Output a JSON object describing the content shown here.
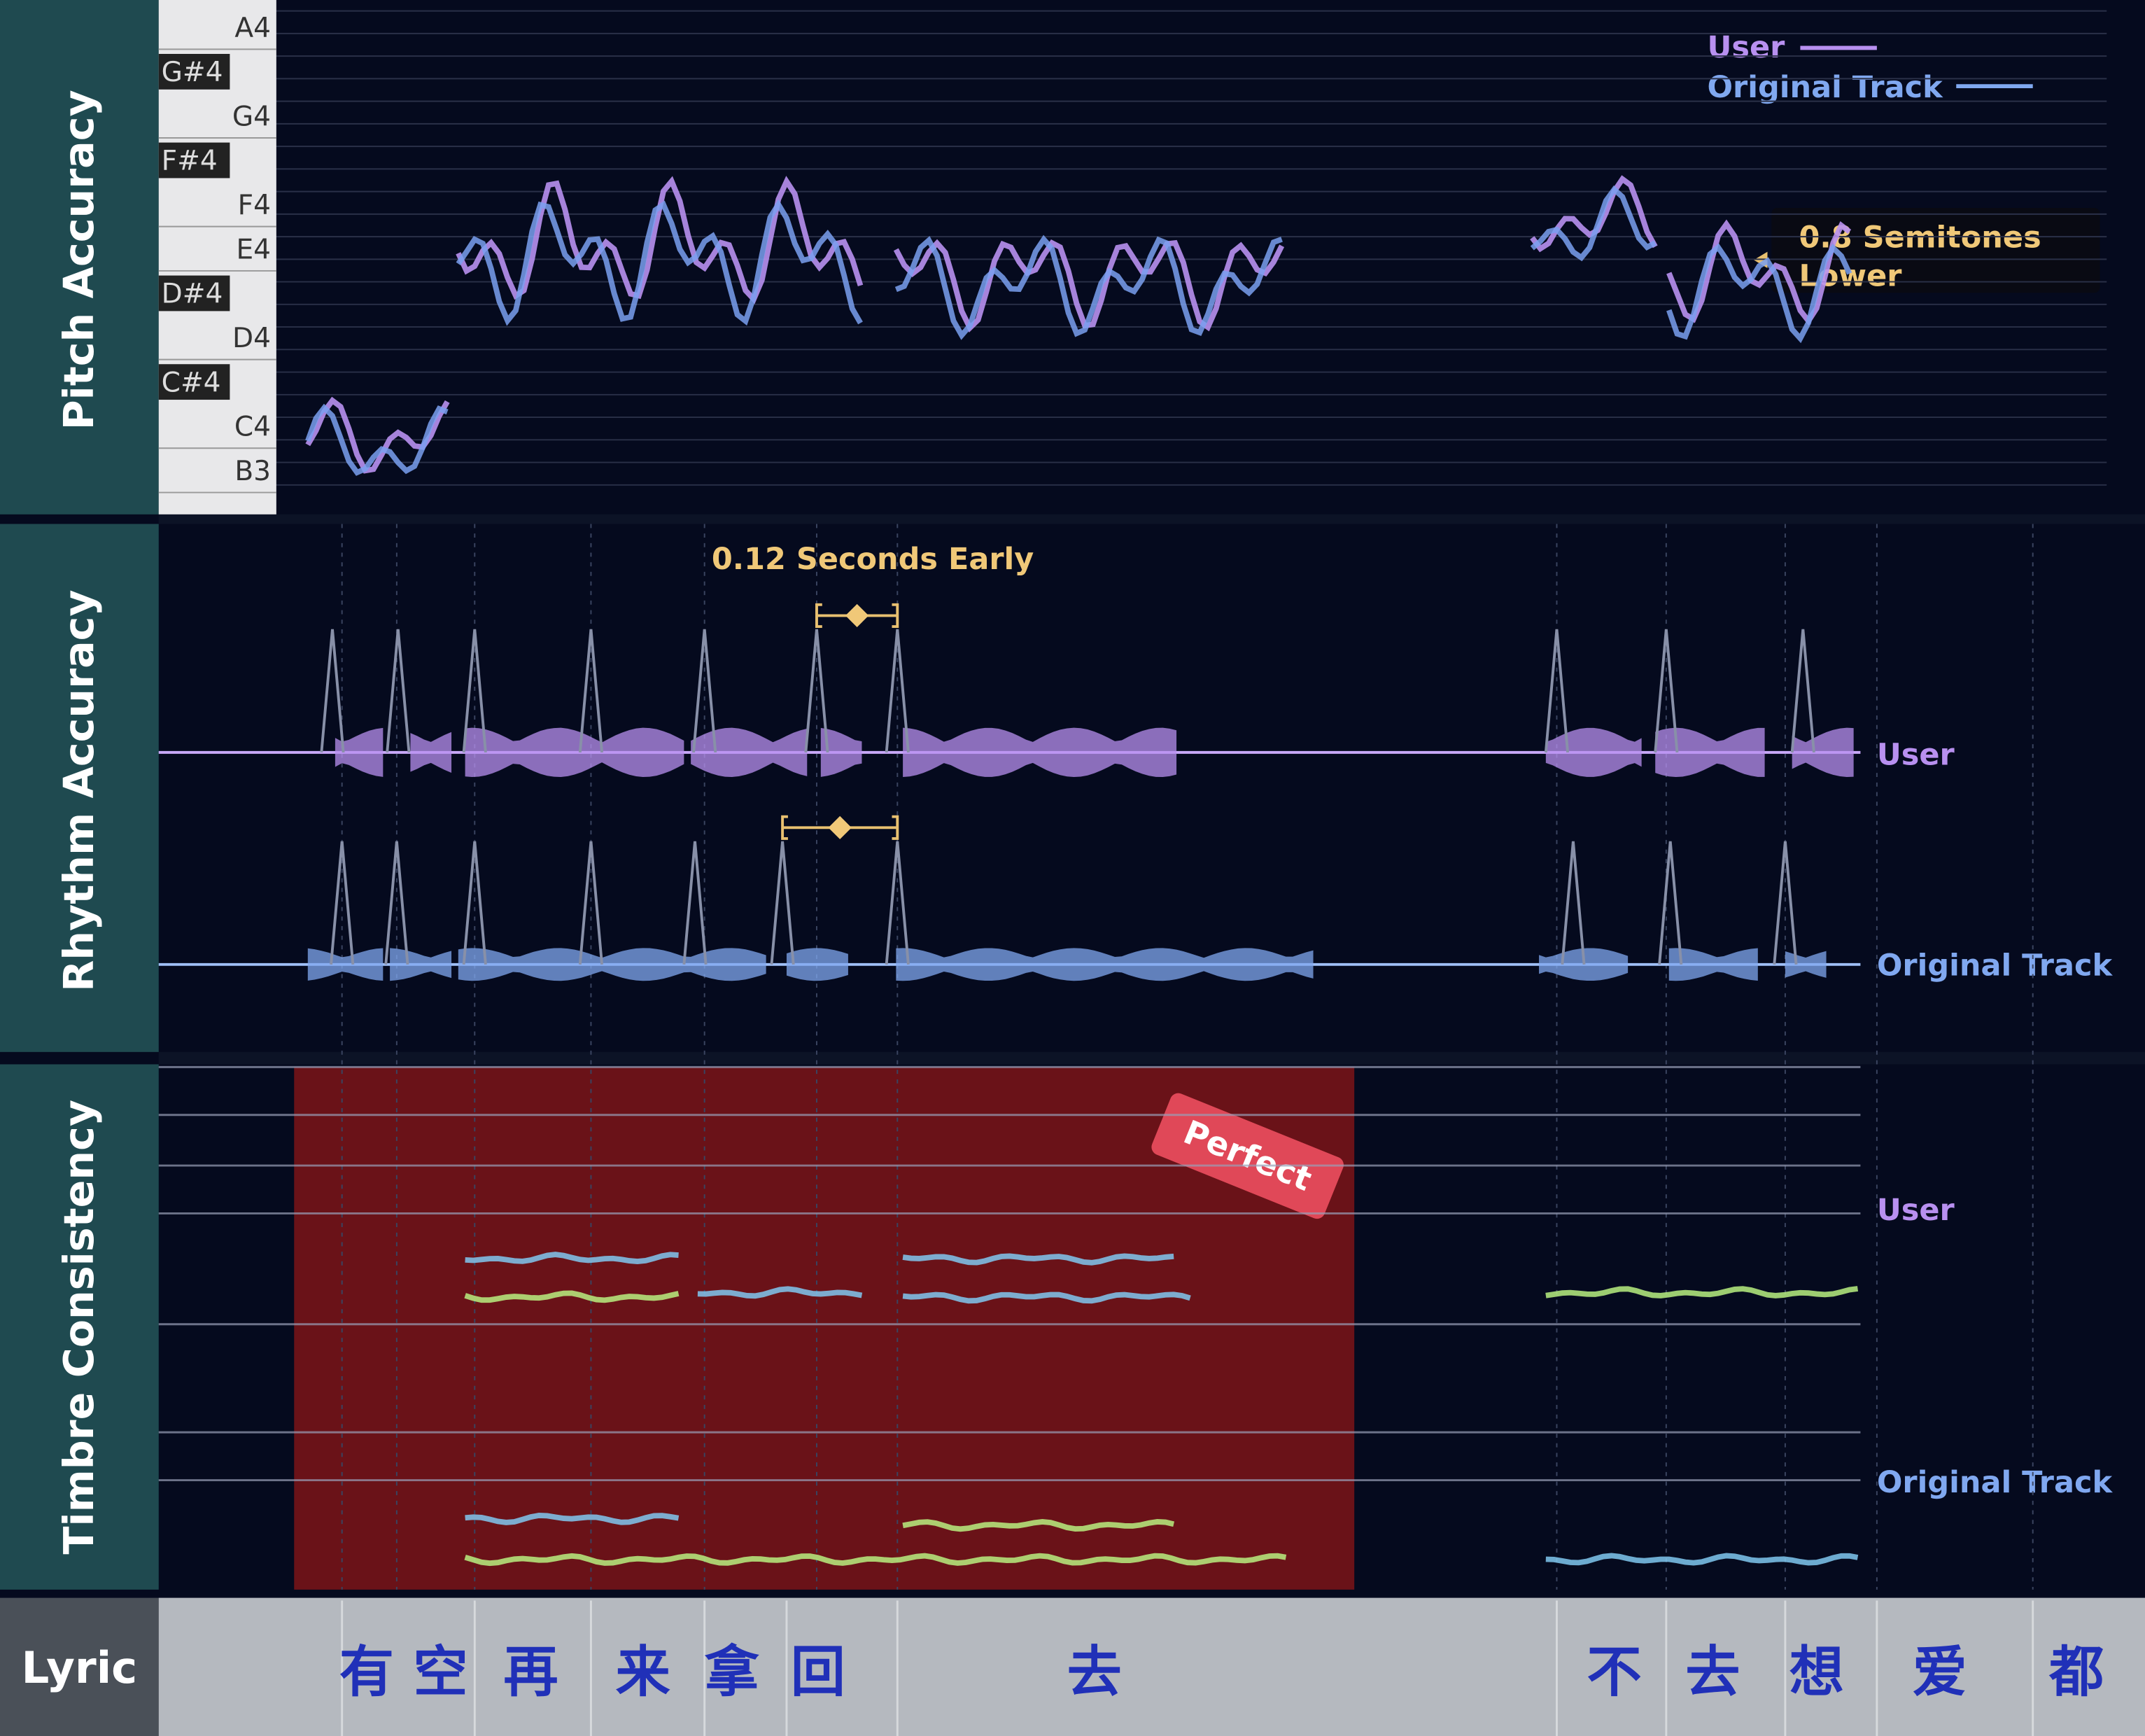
{
  "pitch": {
    "label": "Pitch Accuracy",
    "notes": [
      "A4",
      "G#4",
      "G4",
      "F#4",
      "F4",
      "E4",
      "D#4",
      "D4",
      "C#4",
      "C4",
      "B3"
    ],
    "legend": [
      "User",
      "Original Track"
    ],
    "annotation": [
      "0.8 Semitones",
      "Lower"
    ]
  },
  "rhythm": {
    "label": "Rhythm Accuracy",
    "annotation": "0.12 Seconds Early",
    "tracks": [
      "User",
      "Original Track"
    ]
  },
  "timbre": {
    "label": "Timbre Consistency",
    "badge": "Perfect",
    "tracks": [
      "User",
      "Original Track"
    ]
  },
  "lyric": {
    "label": "Lyric",
    "words": [
      "有",
      "空",
      "再",
      "来",
      "拿",
      "回",
      "去",
      "不",
      "去",
      "想",
      "爱",
      "都"
    ]
  }
}
